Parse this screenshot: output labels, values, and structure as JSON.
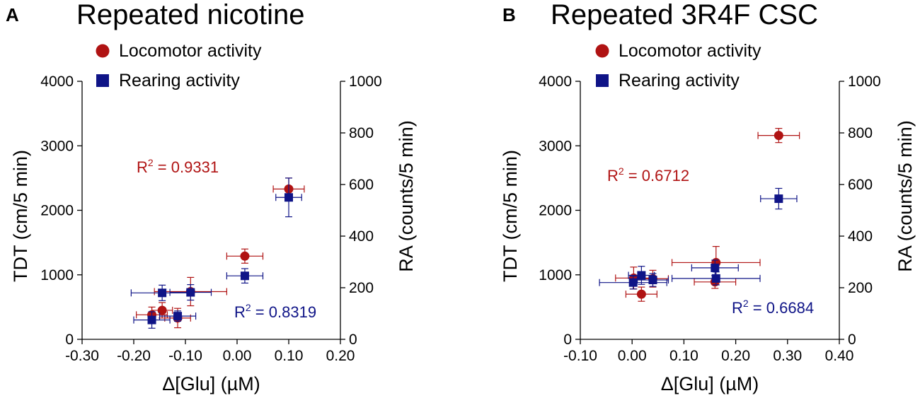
{
  "chart_data": [
    {
      "type": "scatter",
      "panel_letter": "A",
      "title": "Repeated nicotine",
      "xlabel": "Δ[Glu] (µM)",
      "ylabel_left": "TDT (cm/5 min)",
      "ylabel_right": "RA  (counts/5 min)",
      "xlim": [
        -0.3,
        0.2
      ],
      "xticks": [
        "-0.30",
        "-0.20",
        "-0.10",
        "0.00",
        "0.10",
        "0.20"
      ],
      "ylim_left": [
        0,
        4000
      ],
      "yticks_left": [
        "0",
        "1000",
        "2000",
        "3000",
        "4000"
      ],
      "ylim_right": [
        0,
        1000
      ],
      "yticks_right": [
        "0",
        "200",
        "400",
        "600",
        "800",
        "1000"
      ],
      "series": [
        {
          "name": "Locomotor activity",
          "axis": "left",
          "marker": "circle",
          "color": "#b01313",
          "r2_label": "R",
          "r2_value": " = 0.9331",
          "points": [
            {
              "x": -0.165,
              "y": 380,
              "xerr": 0.03,
              "yerr": 120
            },
            {
              "x": -0.145,
              "y": 450,
              "xerr": 0.02,
              "yerr": 120
            },
            {
              "x": -0.115,
              "y": 330,
              "xerr": 0.025,
              "yerr": 150
            },
            {
              "x": -0.09,
              "y": 740,
              "xerr": 0.07,
              "yerr": 220
            },
            {
              "x": 0.015,
              "y": 1290,
              "xerr": 0.035,
              "yerr": 110
            },
            {
              "x": 0.1,
              "y": 2330,
              "xerr": 0.03,
              "yerr": 170
            }
          ]
        },
        {
          "name": "Rearing activity",
          "axis": "right",
          "marker": "square",
          "color": "#0f1487",
          "r2_label": "R",
          "r2_value": " = 0.8319",
          "points": [
            {
              "x": -0.165,
              "y": 75,
              "xerr": 0.035,
              "yerr": 32
            },
            {
              "x": -0.145,
              "y": 180,
              "xerr": 0.06,
              "yerr": 30
            },
            {
              "x": -0.115,
              "y": 90,
              "xerr": 0.035,
              "yerr": 20
            },
            {
              "x": -0.09,
              "y": 182,
              "xerr": 0.04,
              "yerr": 30
            },
            {
              "x": 0.015,
              "y": 246,
              "xerr": 0.035,
              "yerr": 28
            },
            {
              "x": 0.1,
              "y": 550,
              "xerr": 0.025,
              "yerr": 75
            }
          ]
        }
      ]
    },
    {
      "type": "scatter",
      "panel_letter": "B",
      "title": "Repeated 3R4F CSC",
      "xlabel": "Δ[Glu] (µM)",
      "ylabel_left": "TDT (cm/5 min)",
      "ylabel_right": "RA  (counts/5 min)",
      "xlim": [
        -0.1,
        0.4
      ],
      "xticks": [
        "-0.10",
        "0.00",
        "0.10",
        "0.20",
        "0.30",
        "0.40"
      ],
      "ylim_left": [
        0,
        4000
      ],
      "yticks_left": [
        "0",
        "1000",
        "2000",
        "3000",
        "4000"
      ],
      "ylim_right": [
        0,
        1000
      ],
      "yticks_right": [
        "0",
        "200",
        "400",
        "600",
        "800",
        "1000"
      ],
      "series": [
        {
          "name": "Locomotor activity",
          "axis": "left",
          "marker": "circle",
          "color": "#b01313",
          "r2_label": "R",
          "r2_value": " = 0.6712",
          "points": [
            {
              "x": 0.003,
              "y": 950,
              "xerr": 0.035,
              "yerr": 170
            },
            {
              "x": 0.018,
              "y": 700,
              "xerr": 0.03,
              "yerr": 110
            },
            {
              "x": 0.04,
              "y": 940,
              "xerr": 0.03,
              "yerr": 130
            },
            {
              "x": 0.16,
              "y": 890,
              "xerr": 0.04,
              "yerr": 100
            },
            {
              "x": 0.162,
              "y": 1190,
              "xerr": 0.085,
              "yerr": 250
            },
            {
              "x": 0.283,
              "y": 3160,
              "xerr": 0.04,
              "yerr": 110
            }
          ]
        },
        {
          "name": "Rearing activity",
          "axis": "right",
          "marker": "square",
          "color": "#0f1487",
          "r2_label": "R",
          "r2_value": " = 0.6684",
          "points": [
            {
              "x": 0.002,
              "y": 220,
              "xerr": 0.065,
              "yerr": 25
            },
            {
              "x": 0.018,
              "y": 248,
              "xerr": 0.025,
              "yerr": 35
            },
            {
              "x": 0.04,
              "y": 230,
              "xerr": 0.03,
              "yerr": 25
            },
            {
              "x": 0.16,
              "y": 277,
              "xerr": 0.045,
              "yerr": 30
            },
            {
              "x": 0.162,
              "y": 236,
              "xerr": 0.085,
              "yerr": 25
            },
            {
              "x": 0.283,
              "y": 545,
              "xerr": 0.035,
              "yerr": 40
            }
          ]
        }
      ]
    }
  ]
}
